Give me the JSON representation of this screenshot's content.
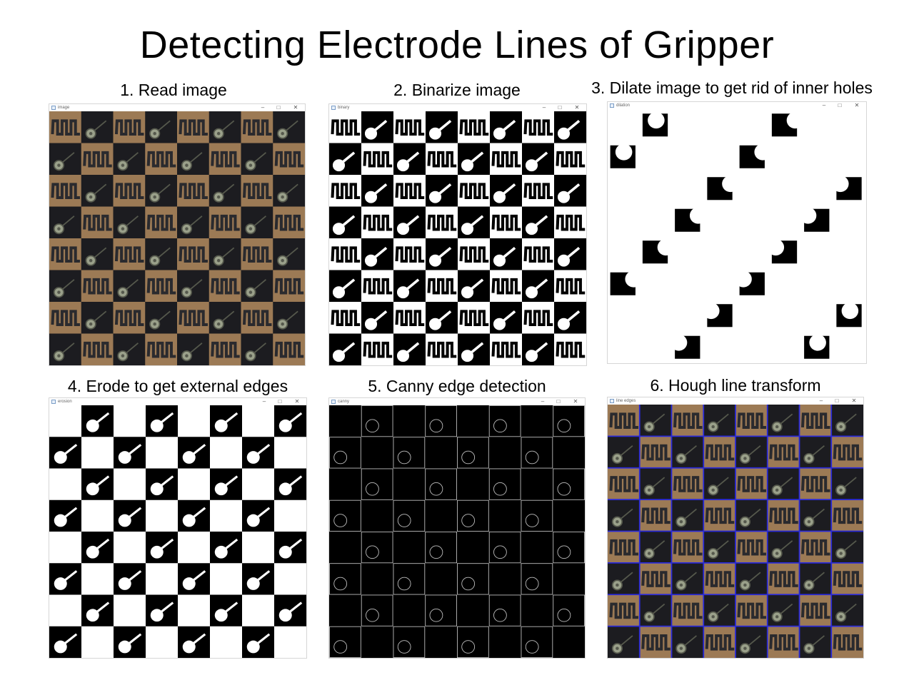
{
  "slide": {
    "title": "Detecting Electrode Lines of Gripper"
  },
  "steps": [
    {
      "label": "1. Read image",
      "window_title": "image",
      "style": "photo"
    },
    {
      "label": "2. Binarize image",
      "window_title": "binary",
      "style": "binary"
    },
    {
      "label": "3. Dilate image to get rid of inner holes",
      "window_title": "dilation",
      "style": "dilation"
    },
    {
      "label": "4. Erode to get external edges",
      "window_title": "erosion",
      "style": "erosion"
    },
    {
      "label": "5. Canny edge detection",
      "window_title": "canny",
      "style": "canny"
    },
    {
      "label": "6. Hough line transform",
      "window_title": "line edges",
      "style": "hough"
    }
  ],
  "window_controls": {
    "minimize": "–",
    "maximize": "□",
    "close": "✕"
  },
  "colors": {
    "copper": "#9c7a55",
    "dark": "#1c1c20",
    "pad": "#9aa08a",
    "hough_line": "#2a2ad8",
    "canny_edge": "#bdbdbd"
  }
}
